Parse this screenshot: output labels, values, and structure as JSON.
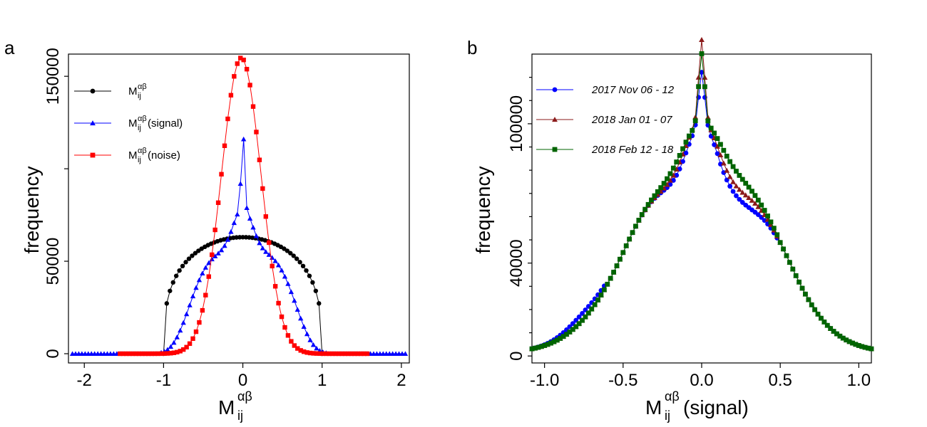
{
  "figure": {
    "panels": [
      "a",
      "b"
    ]
  },
  "chart_data": [
    {
      "panel": "a",
      "type": "line",
      "xlabel_main": "M",
      "xlabel_sub": "ij",
      "xlabel_sup": "αβ",
      "ylabel": "frequency",
      "xlim": [
        -2.2,
        2.1
      ],
      "ylim": [
        -5000,
        162000
      ],
      "xticks": [
        -2,
        -1,
        0,
        1,
        2
      ],
      "xtick_labels": [
        "-2",
        "-1",
        "0",
        "1",
        "2"
      ],
      "yticks": [
        0,
        50000,
        100000,
        150000
      ],
      "ytick_labels": [
        "0",
        "50000",
        "",
        "150000"
      ],
      "legend_position": "top-left",
      "series": [
        {
          "name_main": "M",
          "name_sub": "ij",
          "name_sup": "αβ",
          "name_suffix": "",
          "color": "#000000",
          "marker": "circle",
          "model": {
            "kind": "semicircle",
            "range": [
              -1,
              1
            ],
            "peak": 63000,
            "step": 0.04
          }
        },
        {
          "name_main": "M",
          "name_sub": "ij",
          "name_sup": "αβ",
          "name_suffix": "(signal)",
          "color": "#0000ff",
          "marker": "triangle",
          "model": {
            "kind": "signal",
            "range": [
              -2.15,
              2.05
            ],
            "step": 0.04
          }
        },
        {
          "name_main": "M",
          "name_sub": "ij",
          "name_sup": "αβ",
          "name_suffix": "(noise)",
          "color": "#ff0000",
          "marker": "square",
          "model": {
            "kind": "gauss",
            "range": [
              -1.55,
              1.6
            ],
            "peak": 160000,
            "sigma": 0.25,
            "step": 0.04
          }
        }
      ]
    },
    {
      "panel": "b",
      "type": "line",
      "xlabel_main": "M",
      "xlabel_sub": "ij",
      "xlabel_sup": "αβ",
      "xlabel_suffix": "(signal)",
      "ylabel": "frequency",
      "xlim": [
        -1.08,
        1.08
      ],
      "ylim": [
        -3000,
        130000
      ],
      "xticks": [
        -1.0,
        -0.5,
        0.0,
        0.5,
        1.0
      ],
      "xtick_labels": [
        "-1.0",
        "-0.5",
        "0.0",
        "0.5",
        "1.0"
      ],
      "yticks": [
        0,
        40000,
        100000
      ],
      "ytick_labels": [
        "0",
        "40000",
        "100000"
      ],
      "legend_position": "top-left",
      "series": [
        {
          "name": "2017 Nov 06 - 12",
          "color": "#0000ff",
          "marker": "circle",
          "model": {
            "kind": "signalB",
            "variant": 0,
            "range": [
              -1.08,
              1.08
            ],
            "step": 0.02
          }
        },
        {
          "name": "2018 Jan 01 - 07",
          "color": "#8b1a1a",
          "marker": "triangle",
          "model": {
            "kind": "signalB",
            "variant": 1,
            "range": [
              -1.08,
              1.08
            ],
            "step": 0.02
          }
        },
        {
          "name": "2018 Feb 12 - 18",
          "color": "#006400",
          "marker": "square",
          "model": {
            "kind": "signalB",
            "variant": 2,
            "range": [
              -1.08,
              1.08
            ],
            "step": 0.02
          }
        }
      ]
    }
  ]
}
